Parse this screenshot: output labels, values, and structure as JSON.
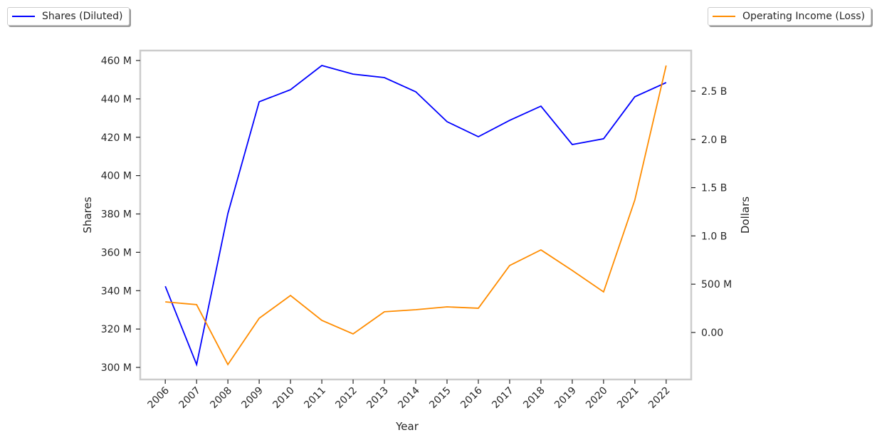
{
  "chart_data": {
    "type": "line",
    "xlabel": "Year",
    "x": [
      2006,
      2007,
      2008,
      2009,
      2010,
      2011,
      2012,
      2013,
      2014,
      2015,
      2016,
      2017,
      2018,
      2019,
      2020,
      2021,
      2022
    ],
    "x_tick_labels": [
      "2006",
      "2007",
      "2008",
      "2009",
      "2010",
      "2011",
      "2012",
      "2013",
      "2014",
      "2015",
      "2016",
      "2017",
      "2018",
      "2019",
      "2020",
      "2021",
      "2022"
    ],
    "xlim": [
      2005.2,
      2022.8
    ],
    "left_axis": {
      "ylabel": "Shares",
      "ylim": [
        293.7,
        465.2
      ],
      "ticks": [
        300,
        320,
        340,
        360,
        380,
        400,
        420,
        440,
        460
      ],
      "tick_labels": [
        "300 M",
        "320 M",
        "340 M",
        "360 M",
        "380 M",
        "400 M",
        "420 M",
        "440 M",
        "460 M"
      ]
    },
    "right_axis": {
      "ylabel": "Dollars",
      "ylim": [
        -0.487,
        2.92
      ],
      "ticks": [
        0,
        0.5,
        1.0,
        1.5,
        2.0,
        2.5
      ],
      "tick_labels": [
        "0.00",
        "500 M",
        "1.0 B",
        "1.5 B",
        "2.0 B",
        "2.5 B"
      ]
    },
    "series": [
      {
        "name": "Shares (Diluted)",
        "axis": "left",
        "unit": "millions",
        "color": "#0000ff",
        "values": [
          342.3,
          301.5,
          380.2,
          438.5,
          444.8,
          457.4,
          452.9,
          451.1,
          443.7,
          428.1,
          420.3,
          428.8,
          436.2,
          416.2,
          419.2,
          441.1,
          448.5
        ]
      },
      {
        "name": "Operating Income (Loss)",
        "axis": "right",
        "unit": "billions",
        "color": "#ff8c00",
        "values": [
          0.317,
          0.288,
          -0.332,
          0.147,
          0.383,
          0.125,
          -0.015,
          0.214,
          0.236,
          0.265,
          0.251,
          0.693,
          0.855,
          0.642,
          0.42,
          1.372,
          2.765
        ]
      }
    ],
    "grid": false,
    "legend": [
      "top-left",
      "top-right"
    ]
  }
}
